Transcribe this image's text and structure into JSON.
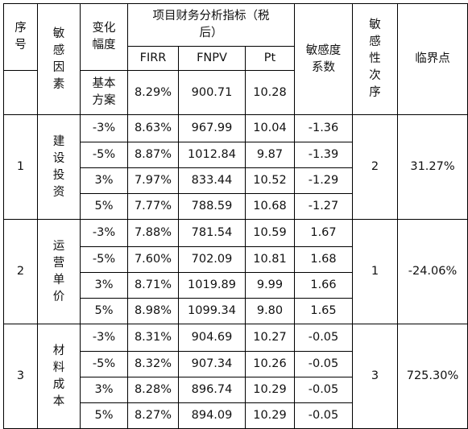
{
  "headers": {
    "no": "序号",
    "factor": "敏感因素",
    "range_lines": [
      "变化",
      "幅度"
    ],
    "indicator_group_lines": [
      "项目财务分析指标（税",
      "后）"
    ],
    "firr": "FIRR",
    "fnpv": "FNPV",
    "pt": "Pt",
    "coef_lines": [
      "敏感度",
      "系数"
    ],
    "rank_chars": [
      "敏",
      "感",
      "性",
      "次",
      "序"
    ],
    "critical": "临界点"
  },
  "base": {
    "label_lines": [
      "基本",
      "方案"
    ],
    "firr": "8.29%",
    "fnpv": "900.71",
    "pt": "10.28"
  },
  "groups": [
    {
      "no": "1",
      "factor_chars": [
        "建",
        "设",
        "投",
        "资"
      ],
      "rank": "2",
      "critical": "31.27%",
      "rows": [
        {
          "range": "-3%",
          "firr": "8.63%",
          "fnpv": "967.99",
          "pt": "10.04",
          "coef": "-1.36"
        },
        {
          "range": "-5%",
          "firr": "8.87%",
          "fnpv": "1012.84",
          "pt": "9.87",
          "coef": "-1.39"
        },
        {
          "range": "3%",
          "firr": "7.97%",
          "fnpv": "833.44",
          "pt": "10.52",
          "coef": "-1.29"
        },
        {
          "range": "5%",
          "firr": "7.77%",
          "fnpv": "788.59",
          "pt": "10.68",
          "coef": "-1.27"
        }
      ]
    },
    {
      "no": "2",
      "factor_chars": [
        "运",
        "营",
        "单",
        "价"
      ],
      "rank": "1",
      "critical": "-24.06%",
      "rows": [
        {
          "range": "-3%",
          "firr": "7.88%",
          "fnpv": "781.54",
          "pt": "10.59",
          "coef": "1.67"
        },
        {
          "range": "-5%",
          "firr": "7.60%",
          "fnpv": "702.09",
          "pt": "10.81",
          "coef": "1.68"
        },
        {
          "range": "3%",
          "firr": "8.71%",
          "fnpv": "1019.89",
          "pt": "9.99",
          "coef": "1.66"
        },
        {
          "range": "5%",
          "firr": "8.98%",
          "fnpv": "1099.34",
          "pt": "9.80",
          "coef": "1.65"
        }
      ]
    },
    {
      "no": "3",
      "factor_chars": [
        "材",
        "料",
        "成",
        "本"
      ],
      "rank": "3",
      "critical": "725.30%",
      "rows": [
        {
          "range": "-3%",
          "firr": "8.31%",
          "fnpv": "904.69",
          "pt": "10.27",
          "coef": "-0.05"
        },
        {
          "range": "-5%",
          "firr": "8.32%",
          "fnpv": "907.34",
          "pt": "10.26",
          "coef": "-0.05"
        },
        {
          "range": "3%",
          "firr": "8.28%",
          "fnpv": "896.74",
          "pt": "10.29",
          "coef": "-0.05"
        },
        {
          "range": "5%",
          "firr": "8.27%",
          "fnpv": "894.09",
          "pt": "10.29",
          "coef": "-0.05"
        }
      ]
    }
  ]
}
